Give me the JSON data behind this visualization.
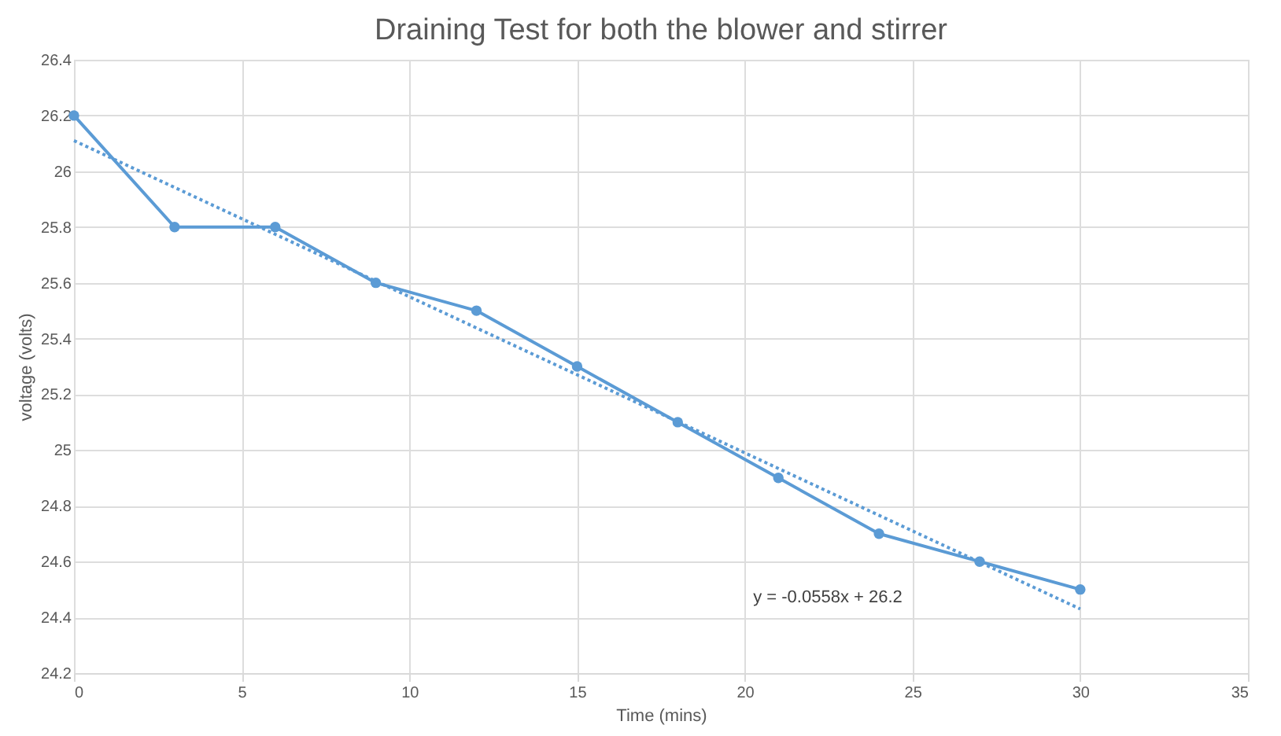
{
  "chart_data": {
    "type": "line",
    "title": "Draining Test for both the blower and stirrer",
    "xlabel": "Time (mins)",
    "ylabel": "voltage (volts)",
    "x": [
      0,
      3,
      6,
      9,
      12,
      15,
      18,
      21,
      24,
      27,
      30
    ],
    "series": [
      {
        "color": "#5b9bd5",
        "marker": "circle",
        "line_style": "solid",
        "values": [
          26.2,
          25.8,
          25.8,
          25.6,
          25.5,
          25.3,
          25.1,
          24.9,
          24.7,
          24.6,
          24.5
        ]
      },
      {
        "type": "line",
        "color": "#5b9bd5",
        "marker": "none",
        "line_style": "dotted",
        "x": [
          0,
          30
        ],
        "values": [
          26.11,
          24.43
        ]
      }
    ],
    "xlim": [
      0,
      35
    ],
    "xticks": [
      0,
      5,
      10,
      15,
      20,
      25,
      30,
      35
    ],
    "ylim": [
      24.2,
      26.4
    ],
    "yticks": [
      24.2,
      24.4,
      24.6,
      24.8,
      25,
      25.2,
      25.4,
      25.6,
      25.8,
      26,
      26.2,
      26.4
    ],
    "grid": true,
    "legend": false,
    "annotations": [
      "y = -0.0558x + 26.2"
    ]
  }
}
